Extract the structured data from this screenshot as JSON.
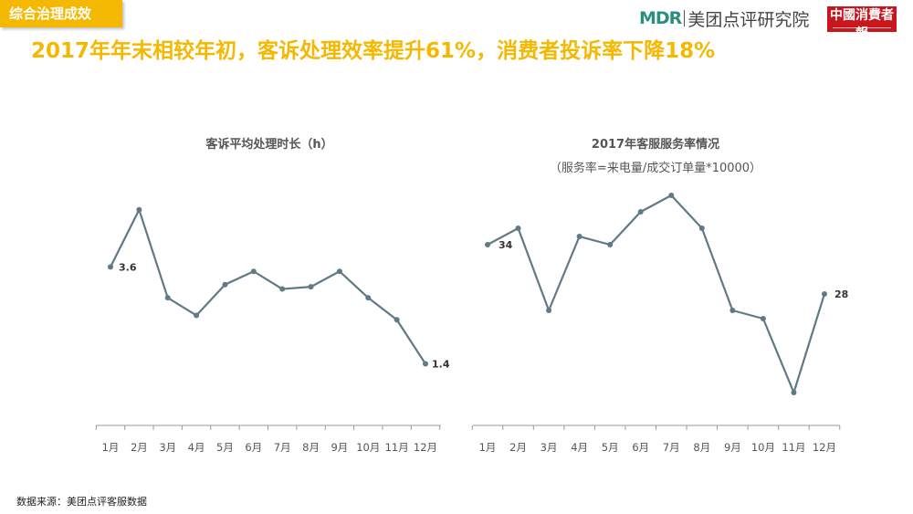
{
  "header": {
    "tag": "综合治理成效",
    "headline": "2017年年末相较年初，客诉处理效率提升61%，消费者投诉率下降18%",
    "logo_mdr_mark": "MDR",
    "logo_mdr_text": "美团点评研究院",
    "logo_paper": "中國消費者報"
  },
  "footer": {
    "source": "数据来源：美团点评客服数据"
  },
  "colors": {
    "accent": "#f5b800",
    "line": "#5f7a86",
    "axis": "#9a9a9a"
  },
  "chart_data": [
    {
      "type": "line",
      "title": "客诉平均处理时长（h）",
      "subtitle": "",
      "categories": [
        "1月",
        "2月",
        "3月",
        "4月",
        "5月",
        "6月",
        "7月",
        "8月",
        "9月",
        "10月",
        "11月",
        "12月"
      ],
      "values": [
        3.6,
        4.9,
        2.9,
        2.5,
        3.2,
        3.5,
        3.1,
        3.15,
        3.5,
        2.9,
        2.4,
        1.4
      ],
      "data_labels": [
        {
          "index": 0,
          "text": "3.6"
        },
        {
          "index": 11,
          "text": "1.4"
        }
      ],
      "ylim": [
        0,
        5.6
      ],
      "grid": false,
      "legend": "none"
    },
    {
      "type": "line",
      "title": "2017年客服服务率情况",
      "subtitle": "（服务率=来电量/成交订单量*10000）",
      "categories": [
        "1月",
        "2月",
        "3月",
        "4月",
        "5月",
        "6月",
        "7月",
        "8月",
        "9月",
        "10月",
        "11月",
        "12月"
      ],
      "values": [
        34,
        36,
        26,
        35,
        34,
        38,
        40,
        36,
        26,
        25,
        16,
        28
      ],
      "data_labels": [
        {
          "index": 0,
          "text": "34"
        },
        {
          "index": 11,
          "text": "28"
        }
      ],
      "ylim": [
        12,
        42
      ],
      "grid": false,
      "legend": "none"
    }
  ]
}
